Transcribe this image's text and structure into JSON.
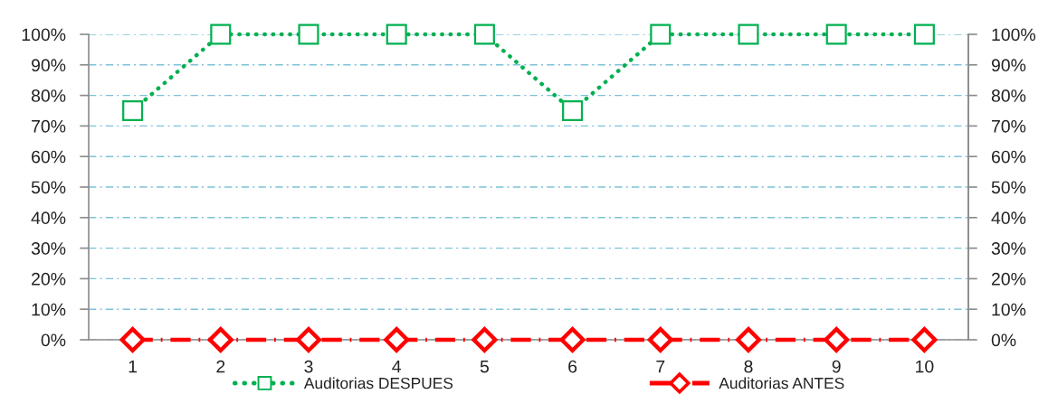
{
  "chart_data": {
    "type": "line",
    "categories": [
      "1",
      "2",
      "3",
      "4",
      "5",
      "6",
      "7",
      "8",
      "9",
      "10"
    ],
    "series": [
      {
        "name": "Auditorias DESPUES",
        "color": "#00b050",
        "values": [
          75,
          100,
          100,
          100,
          100,
          75,
          100,
          100,
          100,
          100
        ],
        "marker": "square",
        "line_style": "dotted"
      },
      {
        "name": "Auditorias ANTES",
        "color": "#ff0000",
        "values": [
          0,
          0,
          0,
          0,
          0,
          0,
          0,
          0,
          0,
          0
        ],
        "marker": "diamond",
        "line_style": "dashed"
      }
    ],
    "ylim": [
      0,
      100
    ],
    "yticks": [
      {
        "value": 0,
        "label": "0%"
      },
      {
        "value": 10,
        "label": "10%"
      },
      {
        "value": 20,
        "label": "20%"
      },
      {
        "value": 30,
        "label": "30%"
      },
      {
        "value": 40,
        "label": "40%"
      },
      {
        "value": 50,
        "label": "50%"
      },
      {
        "value": 60,
        "label": "60%"
      },
      {
        "value": 70,
        "label": "70%"
      },
      {
        "value": 80,
        "label": "80%"
      },
      {
        "value": 90,
        "label": "90%"
      },
      {
        "value": 100,
        "label": "100%"
      }
    ],
    "y2lim": [
      0,
      100
    ],
    "y2ticks": [
      {
        "value": 0,
        "label": "0%"
      },
      {
        "value": 10,
        "label": "10%"
      },
      {
        "value": 20,
        "label": "20%"
      },
      {
        "value": 30,
        "label": "30%"
      },
      {
        "value": 40,
        "label": "40%"
      },
      {
        "value": 50,
        "label": "50%"
      },
      {
        "value": 60,
        "label": "60%"
      },
      {
        "value": 70,
        "label": "70%"
      },
      {
        "value": 80,
        "label": "80%"
      },
      {
        "value": 90,
        "label": "90%"
      },
      {
        "value": 100,
        "label": "100%"
      }
    ],
    "grid": "y",
    "legend": "bottom"
  }
}
